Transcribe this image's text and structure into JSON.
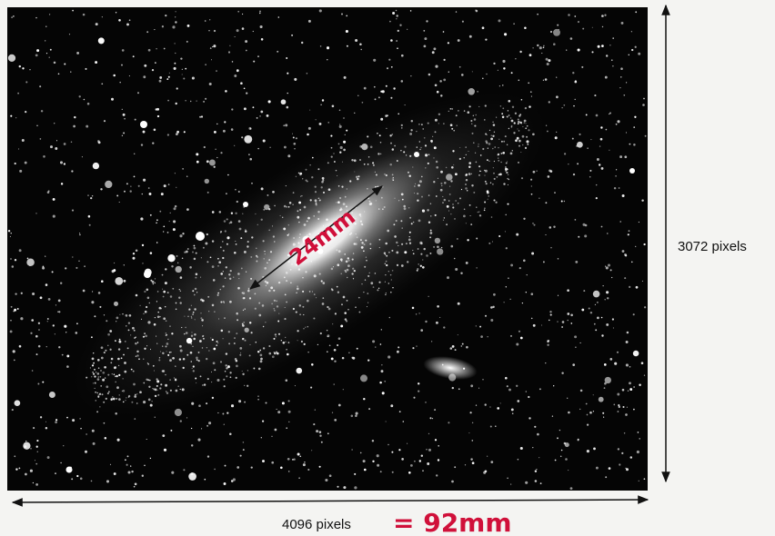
{
  "photo": {
    "scale_label": "24mm"
  },
  "height_label": "3072 pixels",
  "width_label": "4096 pixels",
  "width_note": "= 92mm"
}
